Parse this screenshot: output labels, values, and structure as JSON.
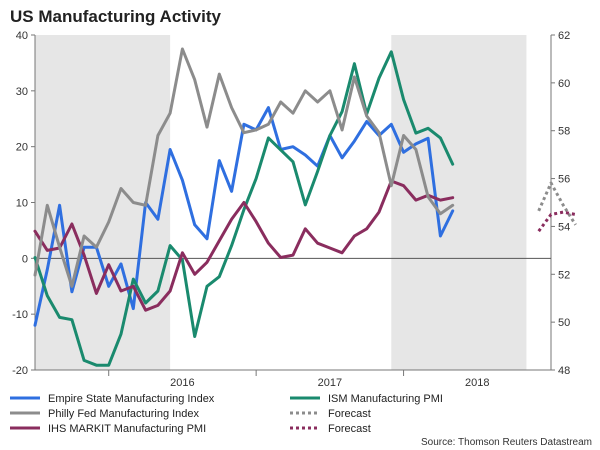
{
  "chart_data": {
    "type": "line",
    "title": "US Manufacturing Activity",
    "source": "Source: Thomson Reuters Datastream",
    "x_labels": [
      "2016",
      "2017",
      "2018"
    ],
    "left_axis": {
      "ticks": [
        "40",
        "30",
        "20",
        "10",
        "0",
        "-10",
        "-20"
      ],
      "ylim": [
        -20,
        40
      ]
    },
    "right_axis": {
      "ticks": [
        "62",
        "60",
        "58",
        "56",
        "54",
        "52",
        "50",
        "48"
      ],
      "ylim": [
        48,
        62
      ]
    },
    "shaded_periods": [
      [
        "2015-07",
        "2016-06"
      ],
      [
        "2017-12",
        "2018-11"
      ]
    ],
    "x_range": [
      "2015-07",
      "2019-01"
    ],
    "series": [
      {
        "name": "Empire State Manufacturing Index",
        "axis": "left",
        "color": "#2f6fe0",
        "style": "solid",
        "start": "2015-07",
        "values": [
          -12,
          -2,
          9.5,
          -6,
          2,
          2,
          -5,
          -1,
          -9,
          10,
          7,
          19.5,
          14,
          6,
          3.5,
          17.5,
          12,
          24,
          23,
          27,
          19.5,
          20,
          18.5,
          16.5,
          22,
          18,
          21,
          24.5,
          22,
          24,
          19,
          20.5,
          21.5,
          4,
          8.5
        ]
      },
      {
        "name": "Philly Fed Manufacturing Index",
        "axis": "left",
        "color": "#8c8c8c",
        "style": "solid",
        "start": "2015-07",
        "values": [
          -3,
          9.5,
          2,
          -5,
          4,
          2,
          6.5,
          12.5,
          10,
          9.5,
          22,
          26,
          37.5,
          32,
          23.5,
          33,
          27,
          22.5,
          23,
          24,
          28,
          26,
          30,
          28,
          30,
          23,
          32.5,
          25.5,
          22.5,
          13,
          22,
          19.5,
          11,
          8,
          9.5
        ]
      },
      {
        "name": "ISM Manufacturing PMI",
        "axis": "right",
        "color": "#1a8a6e",
        "style": "solid",
        "start": "2015-07",
        "values": [
          52.7,
          51.1,
          50.2,
          50.1,
          48.4,
          48.2,
          48.2,
          49.5,
          51.8,
          50.8,
          51.3,
          53.2,
          52.6,
          49.4,
          51.5,
          51.9,
          53.2,
          54.7,
          56.0,
          57.7,
          57.2,
          56.7,
          54.9,
          56.3,
          57.8,
          58.8,
          60.8,
          58.7,
          60.2,
          61.3,
          59.3,
          57.9,
          58.1,
          57.7,
          56.6
        ]
      },
      {
        "name": "IHS MARKIT Manufacturing PMI",
        "axis": "right",
        "color": "#8a2d5e",
        "style": "solid",
        "start": "2015-07",
        "values": [
          53.8,
          53.0,
          53.1,
          54.1,
          52.8,
          51.2,
          52.4,
          51.3,
          51.5,
          50.5,
          50.7,
          51.3,
          52.9,
          52.0,
          52.5,
          53.4,
          54.3,
          55.0,
          54.2,
          53.3,
          52.7,
          52.8,
          53.9,
          53.3,
          53.1,
          52.9,
          53.6,
          53.9,
          54.6,
          55.9,
          55.7,
          55.1,
          55.3,
          55.1,
          55.2
        ]
      },
      {
        "name": "Forecast",
        "axis": "left",
        "color": "#8c8c8c",
        "style": "dotted",
        "start": "2018-12",
        "values": [
          8.5,
          13.5,
          9.5,
          6
        ]
      },
      {
        "name": "Forecast",
        "axis": "right",
        "color": "#8a2d5e",
        "style": "dotted",
        "start": "2018-12",
        "values": [
          53.8,
          54.5,
          54.6,
          54.5
        ]
      }
    ],
    "legend": [
      {
        "label": "Empire State Manufacturing Index",
        "color": "#2f6fe0",
        "style": "solid"
      },
      {
        "label": "ISM Manufacturing PMI",
        "color": "#1a8a6e",
        "style": "solid"
      },
      {
        "label": "Philly Fed Manufacturing Index",
        "color": "#8c8c8c",
        "style": "solid"
      },
      {
        "label": "Forecast",
        "color": "#8c8c8c",
        "style": "dotted"
      },
      {
        "label": "IHS MARKIT Manufacturing PMI",
        "color": "#8a2d5e",
        "style": "solid"
      },
      {
        "label": "Forecast",
        "color": "#8a2d5e",
        "style": "dotted"
      }
    ]
  }
}
